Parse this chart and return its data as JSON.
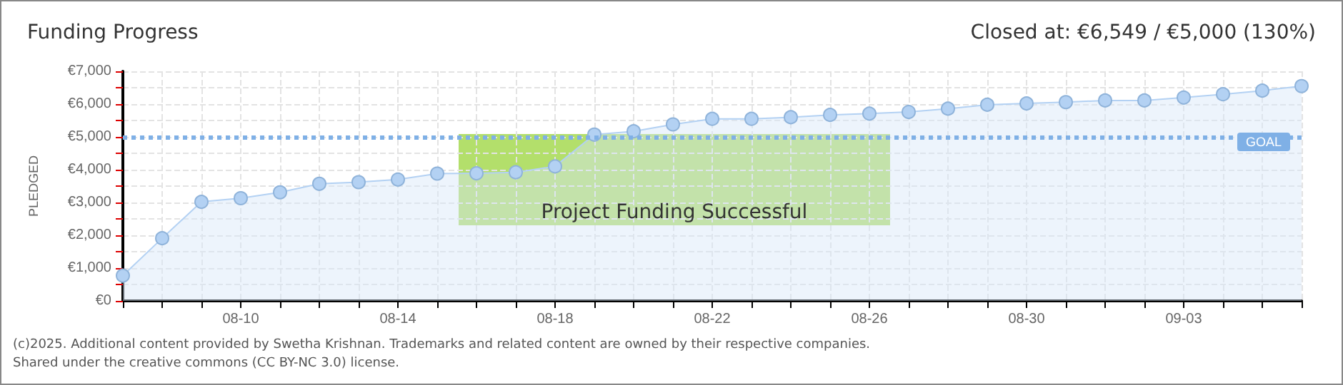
{
  "chart_data": {
    "type": "area",
    "title": "Funding Progress",
    "subtitle": "Closed at:  €6,549 / €5,000 (130%)",
    "ylabel": "PLEDGED",
    "categories": [
      null,
      null,
      null,
      "08-10",
      null,
      null,
      null,
      "08-14",
      null,
      null,
      null,
      "08-18",
      null,
      null,
      null,
      "08-22",
      null,
      null,
      null,
      "08-26",
      null,
      null,
      null,
      "08-30",
      null,
      null,
      null,
      "09-03",
      null,
      null,
      null
    ],
    "series": [
      {
        "color": "#b3d1f3",
        "values": [
          770,
          1910,
          3020,
          3130,
          3310,
          3570,
          3620,
          3700,
          3880,
          3890,
          3920,
          4100,
          5070,
          5170,
          5380,
          5550,
          5550,
          5600,
          5670,
          5710,
          5760,
          5860,
          5980,
          6020,
          6060,
          6110,
          6110,
          6200,
          6300,
          6410,
          6549
        ]
      }
    ],
    "ylim": [
      0,
      7000
    ],
    "yticks": [
      {
        "value": 0,
        "label": "€0"
      },
      {
        "value": 500,
        "label": null
      },
      {
        "value": 1000,
        "label": "€1,000"
      },
      {
        "value": 1500,
        "label": null
      },
      {
        "value": 2000,
        "label": "€2,000"
      },
      {
        "value": 2500,
        "label": null
      },
      {
        "value": 3000,
        "label": "€3,000"
      },
      {
        "value": 3500,
        "label": null
      },
      {
        "value": 4000,
        "label": "€4,000"
      },
      {
        "value": 4500,
        "label": null
      },
      {
        "value": 5000,
        "label": "€5,000"
      },
      {
        "value": 5500,
        "label": null
      },
      {
        "value": 6000,
        "label": "€6,000"
      },
      {
        "value": 6500,
        "label": null
      },
      {
        "value": 7000,
        "label": "€7,000"
      }
    ],
    "ref_lines": [
      {
        "axis": "y",
        "value": 5000,
        "label": "GOAL",
        "color": "#7fb0e6",
        "line_style": "dotted"
      }
    ],
    "annotations": [
      "Project Funding Successful",
      "(c)2025. Additional content provided by Swetha Krishnan. Trademarks and related content are owned by their respective companies.",
      "Shared under the creative commons (CC BY-NC 3.0) license."
    ],
    "grid": true,
    "marker": "circle",
    "line_style": "solid"
  }
}
